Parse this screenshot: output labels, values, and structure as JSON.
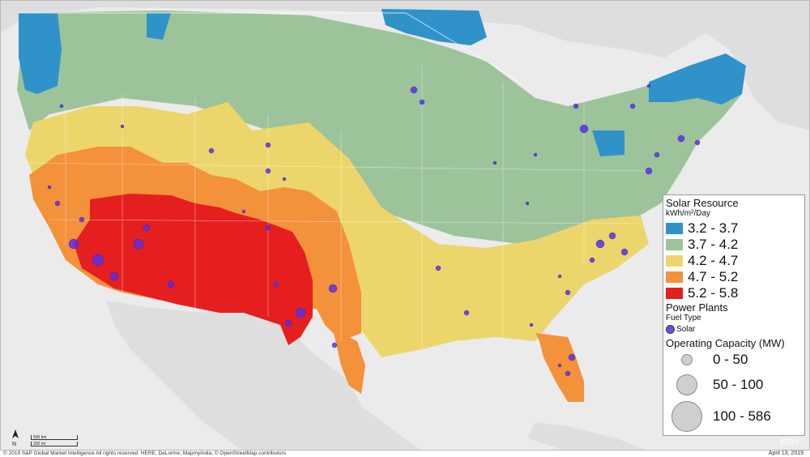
{
  "legend": {
    "solar_title": "Solar Resource",
    "solar_unit": "kWh/m²/Day",
    "classes": [
      {
        "range": "3.2 - 3.7",
        "color": "#2f93c9"
      },
      {
        "range": "3.7 - 4.2",
        "color": "#9dc39a"
      },
      {
        "range": "4.2 - 4.7",
        "color": "#ecd66b"
      },
      {
        "range": "4.7 - 5.2",
        "color": "#f4913b"
      },
      {
        "range": "5.2 - 5.8",
        "color": "#e51f1f"
      }
    ],
    "plants_title": "Power Plants",
    "fuel_type_label": "Fuel Type",
    "fuel_solar_label": "Solar",
    "capacity_title": "Operating Capacity (MW)",
    "capacity_classes": [
      "0 - 50",
      "50 - 100",
      "100 - 586"
    ]
  },
  "map": {
    "land_color": "#dedede",
    "water_color": "#ebebeb",
    "marker_color": "#5b2fe8",
    "icons": [
      "north-arrow-icon",
      "esri-logo"
    ]
  },
  "scale": {
    "km": "500 km",
    "mi": "200 mi"
  },
  "north_label": "N",
  "esri_text": "esri",
  "copyright": "© 2019 S&P Global Market Intelligence All rights reserved. HERE, DeLorme, MapmyIndia, © OpenStreetMap contributors",
  "date": "April 13, 2019"
}
